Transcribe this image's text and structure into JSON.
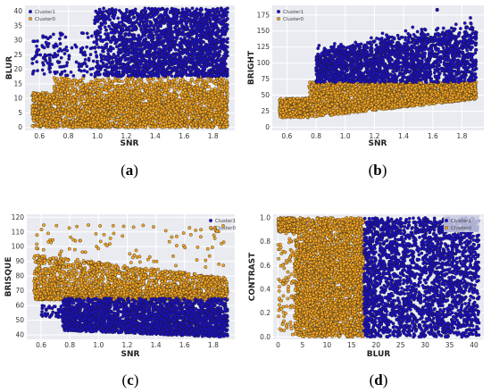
{
  "figure": {
    "captions": [
      "(a)",
      "(b)",
      "(c)",
      "(d)"
    ]
  },
  "colors": {
    "cluster1": "#1b0fc8",
    "cluster0": "#f4a521",
    "marker_edge": "#1a1a1a",
    "plot_background": "#e9ebf0",
    "grid": "#ffffff"
  },
  "chart_data": [
    {
      "id": "a",
      "type": "scatter",
      "title": "",
      "xlabel": "SNR",
      "ylabel": "BLUR",
      "xlim": [
        0.5,
        1.95
      ],
      "ylim": [
        -1,
        42
      ],
      "xticks": [
        "0.6",
        "0.8",
        "1.0",
        "1.2",
        "1.4",
        "1.6",
        "1.8"
      ],
      "xtick_values": [
        0.6,
        0.8,
        1.0,
        1.2,
        1.4,
        1.6,
        1.8
      ],
      "yticks": [
        "0",
        "5",
        "10",
        "15",
        "20",
        "25",
        "30",
        "35",
        "40"
      ],
      "ytick_values": [
        0,
        5,
        10,
        15,
        20,
        25,
        30,
        35,
        40
      ],
      "legend": "top-left",
      "grid": true,
      "series": [
        {
          "name": "Cluster1",
          "color": "#1b0fc8",
          "x_range": [
            0.55,
            1.9
          ],
          "y_range": [
            17.5,
            41
          ],
          "points": 2400
        },
        {
          "name": "Cluster0",
          "color": "#f4a521",
          "x_range": [
            0.55,
            1.9
          ],
          "y_range": [
            0,
            17.5
          ],
          "points": 3000
        }
      ]
    },
    {
      "id": "b",
      "type": "scatter",
      "title": "",
      "xlabel": "SNR",
      "ylabel": "BRIGHT",
      "xlim": [
        0.5,
        1.95
      ],
      "ylim": [
        -5,
        190
      ],
      "xticks": [
        "0.6",
        "0.8",
        "1.0",
        "1.2",
        "1.4",
        "1.6",
        "1.8"
      ],
      "xtick_values": [
        0.6,
        0.8,
        1.0,
        1.2,
        1.4,
        1.6,
        1.8
      ],
      "yticks": [
        "0",
        "25",
        "50",
        "75",
        "100",
        "125",
        "150",
        "175"
      ],
      "ytick_values": [
        0,
        25,
        50,
        75,
        100,
        125,
        150,
        175
      ],
      "legend": "top-left",
      "grid": true,
      "series": [
        {
          "name": "Cluster1",
          "color": "#1b0fc8",
          "x_range": [
            0.75,
            1.9
          ],
          "y_range": [
            70,
            185
          ],
          "points": 2200
        },
        {
          "name": "Cluster0",
          "color": "#f4a521",
          "x_range": [
            0.55,
            1.9
          ],
          "y_range": [
            10,
            70
          ],
          "points": 2800
        }
      ]
    },
    {
      "id": "c",
      "type": "scatter",
      "title": "",
      "xlabel": "SNR",
      "ylabel": "BRISQUE",
      "xlim": [
        0.5,
        1.95
      ],
      "ylim": [
        37,
        122
      ],
      "xticks": [
        "0.6",
        "0.8",
        "1.0",
        "1.2",
        "1.4",
        "1.6",
        "1.8"
      ],
      "xtick_values": [
        0.6,
        0.8,
        1.0,
        1.2,
        1.4,
        1.6,
        1.8
      ],
      "yticks": [
        "40",
        "50",
        "60",
        "70",
        "80",
        "90",
        "100",
        "110",
        "120"
      ],
      "ytick_values": [
        40,
        50,
        60,
        70,
        80,
        90,
        100,
        110,
        120
      ],
      "legend": "top-right",
      "grid": true,
      "series": [
        {
          "name": "Cluster1",
          "color": "#1b0fc8",
          "x_range": [
            0.6,
            1.9
          ],
          "y_range": [
            40,
            65
          ],
          "points": 2600
        },
        {
          "name": "Cluster0",
          "color": "#f4a521",
          "x_range": [
            0.55,
            1.9
          ],
          "y_range": [
            62,
            118
          ],
          "points": 2600
        }
      ]
    },
    {
      "id": "d",
      "type": "scatter",
      "title": "",
      "xlabel": "BLUR",
      "ylabel": "CONTRAST",
      "xlim": [
        -1,
        42
      ],
      "ylim": [
        -0.02,
        1.03
      ],
      "xticks": [
        "0",
        "5",
        "10",
        "15",
        "20",
        "25",
        "30",
        "35",
        "40"
      ],
      "xtick_values": [
        0,
        5,
        10,
        15,
        20,
        25,
        30,
        35,
        40
      ],
      "yticks": [
        "0.0",
        "0.2",
        "0.4",
        "0.6",
        "0.8",
        "1.0"
      ],
      "ytick_values": [
        0.0,
        0.2,
        0.4,
        0.6,
        0.8,
        1.0
      ],
      "legend": "top-right",
      "grid": true,
      "series": [
        {
          "name": "Cluster1",
          "color": "#1b0fc8",
          "x_range": [
            17.5,
            41
          ],
          "y_range": [
            0,
            1
          ],
          "points": 2600
        },
        {
          "name": "Cluster0",
          "color": "#f4a521",
          "x_range": [
            0,
            17.5
          ],
          "y_range": [
            0,
            1
          ],
          "points": 3400
        }
      ]
    }
  ]
}
